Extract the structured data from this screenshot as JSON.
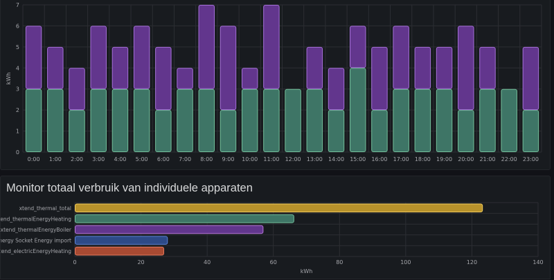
{
  "colors": {
    "background": "#111217",
    "panel": "#181b1f",
    "grid": "#2c2e33",
    "tick_text": "#a5a6ab",
    "green_fill": "#3e7566",
    "green_stroke": "#73bf9a",
    "purple_fill": "#62368d",
    "purple_stroke": "#a570d8",
    "gold_fill": "#b8922b",
    "gold_stroke": "#f2cc5c",
    "teal_fill": "#3e7566",
    "teal_stroke": "#73bf9a",
    "violet_fill": "#62368d",
    "violet_stroke": "#b877d9",
    "blue_fill": "#2d4a87",
    "blue_stroke": "#5b82d8",
    "red_fill": "#a84a32",
    "red_stroke": "#e67a5c"
  },
  "chart_data": [
    {
      "type": "bar",
      "stacked": true,
      "title": "",
      "xlabel": "",
      "ylabel": "kWh",
      "ylim": [
        0,
        7
      ],
      "yticks": [
        0,
        1,
        2,
        3,
        4,
        5,
        6,
        7
      ],
      "grid": true,
      "categories": [
        "0:00",
        "1:00",
        "2:00",
        "3:00",
        "4:00",
        "5:00",
        "6:00",
        "7:00",
        "8:00",
        "9:00",
        "10:00",
        "11:00",
        "12:00",
        "13:00",
        "14:00",
        "15:00",
        "16:00",
        "17:00",
        "18:00",
        "19:00",
        "20:00",
        "21:00",
        "22:00",
        "23:00"
      ],
      "series": [
        {
          "color": "green",
          "values": [
            3,
            3,
            2,
            3,
            3,
            3,
            2,
            3,
            3,
            2,
            3,
            3,
            3,
            3,
            2,
            4,
            2,
            3,
            3,
            3,
            2,
            3,
            3,
            2
          ]
        },
        {
          "color": "purple",
          "values": [
            3,
            2,
            2,
            3,
            2,
            3,
            3,
            1,
            4,
            4,
            1,
            4,
            0,
            2,
            2,
            2,
            3,
            3,
            2,
            2,
            4,
            2,
            0,
            3
          ]
        }
      ]
    },
    {
      "type": "bar",
      "orientation": "horizontal",
      "title": "Monitor totaal verbruik van individuele apparaten",
      "xlabel": "kWh",
      "ylabel": "",
      "xlim": [
        0,
        140
      ],
      "xticks": [
        0,
        20,
        40,
        60,
        80,
        100,
        120,
        140
      ],
      "grid": true,
      "categories": [
        "xtend_thermal_total",
        "xtend_thermalEnergyHeating",
        "xtend_thermalEnergyBoiler",
        "Energy Socket Energy import",
        "xtend_electricEnergyHeating"
      ],
      "values": [
        123.3,
        66.3,
        57,
        28.1,
        27
      ],
      "bar_colors": [
        "gold",
        "teal",
        "violet",
        "blue",
        "red"
      ]
    }
  ]
}
